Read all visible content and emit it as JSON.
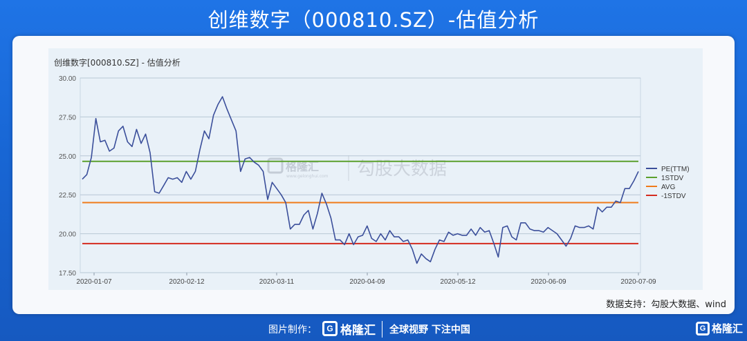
{
  "page": {
    "title": "创维数字（000810.SZ）-估值分析"
  },
  "source_note": "数据支持：勾股大数据、wind",
  "watermark": {
    "brand": "格隆汇",
    "site": "www.gelonghui.com",
    "text": "勾股大数据"
  },
  "footer": {
    "made_label": "图片制作：",
    "brand": "格隆汇",
    "slogan": "全球视野 下注中国",
    "corner_brand": "格隆汇"
  },
  "colors": {
    "pe": "#3a4e9a",
    "stdv_plus": "#5aa02c",
    "avg": "#f07a19",
    "stdv_minus": "#d42a1e"
  },
  "chart_data": {
    "type": "line",
    "title": "创维数字[000810.SZ] - 估值分析",
    "ylim": [
      17.5,
      30.0
    ],
    "yticks": [
      "30.00",
      "27.50",
      "25.00",
      "22.50",
      "20.00",
      "17.50"
    ],
    "xticks": [
      "2020-01-07",
      "2020-02-12",
      "2020-03-11",
      "2020-04-09",
      "2020-05-12",
      "2020-06-09",
      "2020-07-09"
    ],
    "legend_position": "right",
    "series": [
      {
        "name": "PE(TTM)",
        "values": [
          23.5,
          23.8,
          24.9,
          27.4,
          25.9,
          26.0,
          25.3,
          25.5,
          26.6,
          26.9,
          25.9,
          25.6,
          26.7,
          25.8,
          26.4,
          25.2,
          22.7,
          22.6,
          23.1,
          23.6,
          23.5,
          23.6,
          23.3,
          24.0,
          23.5,
          24.0,
          25.4,
          26.6,
          26.1,
          27.6,
          28.3,
          28.8,
          28.0,
          27.3,
          26.6,
          24.0,
          24.8,
          24.9,
          24.6,
          24.4,
          24.0,
          22.2,
          23.3,
          22.9,
          22.5,
          22.0,
          20.3,
          20.6,
          20.6,
          21.2,
          21.5,
          20.3,
          21.3,
          22.6,
          21.9,
          21.0,
          19.6,
          19.6,
          19.3,
          20.0,
          19.3,
          19.8,
          19.9,
          20.5,
          19.7,
          19.5,
          20.0,
          19.6,
          20.2,
          19.8,
          19.8,
          19.5,
          19.6,
          19.0,
          18.1,
          18.7,
          18.4,
          18.2,
          19.0,
          19.6,
          19.5,
          20.1,
          19.9,
          20.0,
          19.9,
          19.9,
          20.3,
          19.9,
          20.4,
          20.1,
          20.2,
          19.4,
          18.5,
          20.4,
          20.5,
          19.8,
          19.6,
          20.7,
          20.7,
          20.3,
          20.2,
          20.2,
          20.1,
          20.4,
          20.2,
          20.0,
          19.6,
          19.2,
          19.7,
          20.5,
          20.4,
          20.4,
          20.5,
          20.3,
          21.7,
          21.4,
          21.7,
          21.7,
          22.1,
          22.0,
          22.9,
          22.9,
          23.4,
          24.0
        ]
      },
      {
        "name": "1STDV",
        "value": 24.65
      },
      {
        "name": "AVG",
        "value": 22.0
      },
      {
        "name": "-1STDV",
        "value": 19.37
      }
    ]
  }
}
